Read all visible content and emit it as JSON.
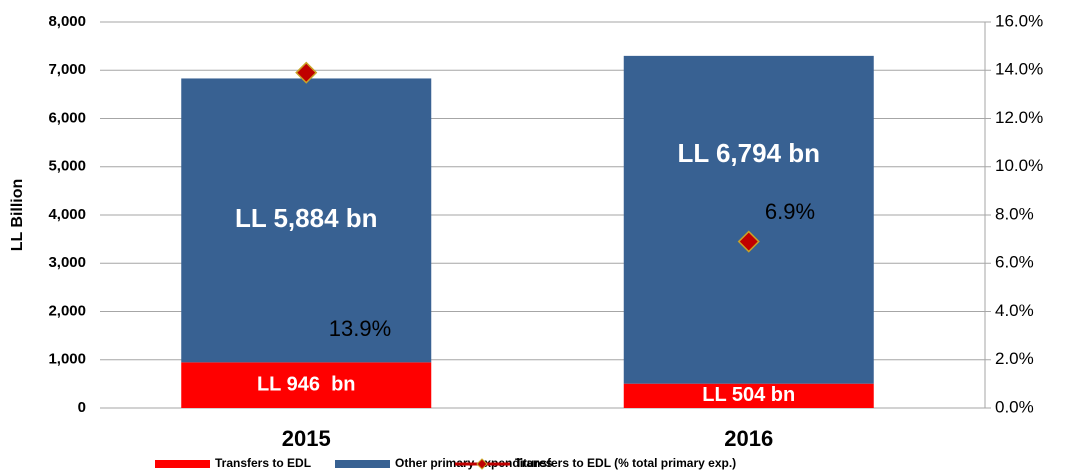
{
  "chart_data": {
    "type": "bar",
    "stacked": true,
    "ylabel": "LL Billion",
    "categories": [
      "2015",
      "2016"
    ],
    "series": [
      {
        "name": "Transfers to EDL",
        "color": "#ff0000",
        "values": [
          946,
          504
        ],
        "value_labels": [
          "LL 946  bn",
          "LL 504 bn"
        ]
      },
      {
        "name": "Other primary expenditures",
        "color": "#386192",
        "values": [
          5884,
          6794
        ],
        "value_labels": [
          "LL 5,884 bn",
          "LL 6,794 bn"
        ]
      },
      {
        "name": "Transfers to EDL (% total primary exp.)",
        "type": "scatter",
        "axis": "y2",
        "color": "#c00000",
        "edge_color": "#c9a227",
        "values": [
          13.9,
          6.9
        ],
        "value_labels": [
          "13.9%",
          "6.9%"
        ]
      }
    ],
    "ylim": [
      0,
      8000
    ],
    "yticks": [
      0,
      {
        "value": 1000,
        "label": "1,000"
      },
      {
        "value": 2000,
        "label": "2,000"
      },
      {
        "value": 3000,
        "label": "3,000"
      },
      {
        "value": 4000,
        "label": "4,000"
      },
      {
        "value": 5000,
        "label": "5,000"
      },
      {
        "value": 6000,
        "label": "6,000"
      },
      {
        "value": 7000,
        "label": "7,000"
      },
      {
        "value": 8000,
        "label": "8,000"
      }
    ],
    "y2lim": [
      0,
      16
    ],
    "y2ticks": [
      {
        "value": 0,
        "label": "0.0%"
      },
      {
        "value": 2,
        "label": "2.0%"
      },
      {
        "value": 4,
        "label": "4.0%"
      },
      {
        "value": 6,
        "label": "6.0%"
      },
      {
        "value": 8,
        "label": "8.0%"
      },
      {
        "value": 10,
        "label": "10.0%"
      },
      {
        "value": 12,
        "label": "12.0%"
      },
      {
        "value": 14,
        "label": "14.0%"
      },
      {
        "value": 16,
        "label": "16.0%"
      }
    ],
    "grid": true,
    "legend": "bottom"
  }
}
